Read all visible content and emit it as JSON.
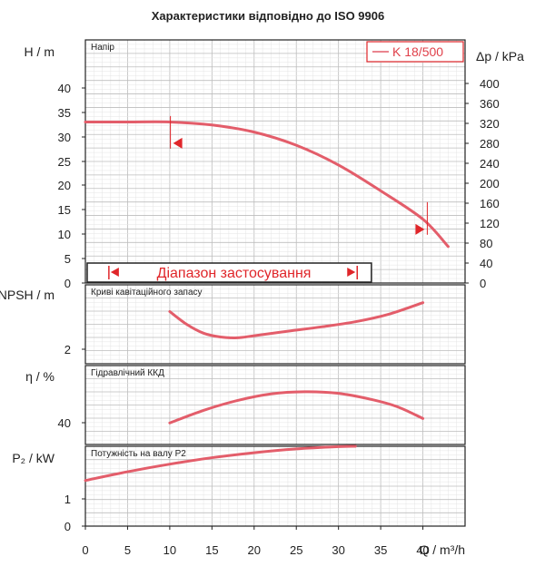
{
  "chart_data": {
    "title": "Характеристики відповідно до ISO 9906",
    "type": "line",
    "colors": {
      "curve": "#e35d6a",
      "marker": "#e0262a",
      "frame": "#222222",
      "grid_major": "#bdbdbd",
      "grid_minor": "#e4e4e4"
    },
    "x": {
      "label": "Q / m³/h",
      "ticks": [
        "0",
        "5",
        "10",
        "15",
        "20",
        "25",
        "30",
        "35",
        "40"
      ],
      "range": [
        0,
        45
      ]
    },
    "legend": {
      "label": "K 18/500",
      "position": "top-right"
    },
    "panels": [
      {
        "id": "head",
        "name": "Напір",
        "ylabel": "H / m",
        "ylim": [
          0,
          48
        ],
        "yticks": [
          "0",
          "5",
          "10",
          "15",
          "20",
          "25",
          "30",
          "35",
          "40"
        ],
        "y2label": "Δp / kPa",
        "y2ticks": [
          "0",
          "40",
          "80",
          "120",
          "160",
          "200",
          "240",
          "280",
          "320",
          "360",
          "400"
        ],
        "series": [
          {
            "name": "K 18/500",
            "x": [
              0,
              5,
              10,
              15,
              20,
              25,
              30,
              35,
              40,
              43
            ],
            "y": [
              31.8,
              31.8,
              31.8,
              31.2,
              29.8,
              27.2,
              23.3,
              18.2,
              12.6,
              7.2
            ]
          }
        ],
        "operating_range": {
          "label": "Діапазон застосування",
          "x_start": 3,
          "x_end": 32
        },
        "markers": [
          {
            "x": 10.4,
            "y": 27.6,
            "direction": "left"
          },
          {
            "x": 40.2,
            "y": 10.6,
            "direction": "right"
          }
        ]
      },
      {
        "id": "npsh",
        "name": "Криві кавітаційного запасу",
        "ylabel": "NPSH / m",
        "ylim": [
          0,
          3.1
        ],
        "yticks": [
          "2"
        ],
        "series": [
          {
            "name": "NPSH",
            "x": [
              10,
              12,
              14,
              16,
              18,
              20,
              24,
              28,
              32,
              36,
              40
            ],
            "y": [
              2.05,
              1.55,
              1.2,
              1.05,
              1.02,
              1.1,
              1.28,
              1.45,
              1.65,
              1.95,
              2.4
            ]
          }
        ]
      },
      {
        "id": "eff",
        "name": "Гідравлічний ККД",
        "ylabel": "η / %",
        "ylim": [
          32,
          76
        ],
        "yticks": [
          "40"
        ],
        "series": [
          {
            "name": "η",
            "x": [
              10,
              14,
              18,
              22,
              26,
              30,
              34,
              37,
              40
            ],
            "y": [
              44,
              51,
              56.5,
              60.2,
              61.4,
              60.5,
              57,
              53,
              46.5
            ]
          }
        ]
      },
      {
        "id": "power",
        "name": "Потужність на валу P2",
        "ylabel": "P₂ / kW",
        "ylim": [
          0,
          2.1
        ],
        "yticks": [
          "0",
          "1"
        ],
        "series": [
          {
            "name": "P2",
            "x": [
              0,
              5,
              10,
              15,
              20,
              25,
              30,
              32
            ],
            "y": [
              1.2,
              1.43,
              1.63,
              1.8,
              1.93,
              2.03,
              2.09,
              2.1
            ]
          }
        ]
      }
    ]
  }
}
